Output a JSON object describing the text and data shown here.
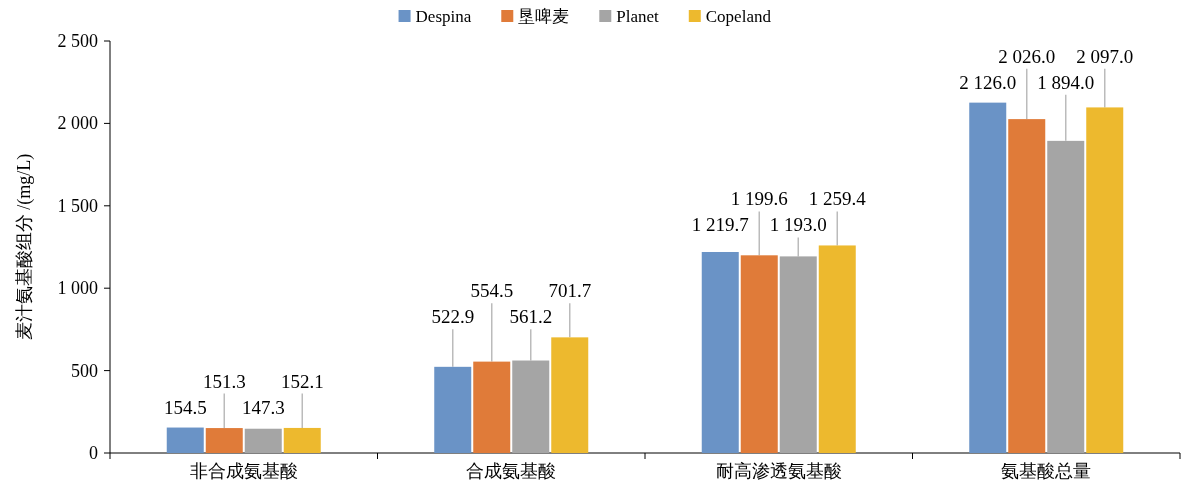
{
  "chart_data": {
    "type": "bar",
    "ylabel": "麦汁氨基酸组分 /(mg/L)",
    "categories": [
      "非合成氨基酸",
      "合成氨基酸",
      "耐高渗透氨基酸",
      "氨基酸总量"
    ],
    "series": [
      {
        "name": "Despina",
        "color": "#6a93c6",
        "values": [
          154.5,
          522.9,
          1219.7,
          2126.0
        ],
        "value_labels": [
          "154.5",
          "522.9",
          "1 219.7",
          "2 126.0"
        ]
      },
      {
        "name": "垦啤麦",
        "color": "#e07b39",
        "values": [
          151.3,
          554.5,
          1199.6,
          2026.0
        ],
        "value_labels": [
          "151.3",
          "554.5",
          "1 199.6",
          "2 026.0"
        ]
      },
      {
        "name": "Planet",
        "color": "#a5a5a5",
        "values": [
          147.3,
          561.2,
          1193.0,
          1894.0
        ],
        "value_labels": [
          "147.3",
          "561.2",
          "1 193.0",
          "1 894.0"
        ]
      },
      {
        "name": "Copeland",
        "color": "#edb92e",
        "values": [
          152.1,
          701.7,
          1259.4,
          2097.0
        ],
        "value_labels": [
          "152.1",
          "701.7",
          "1 259.4",
          "2 097.0"
        ]
      }
    ],
    "ylim": [
      0,
      2500
    ],
    "yticks": [
      0,
      500,
      {
        "value": 1000,
        "label": "1 000"
      },
      {
        "value": 1500,
        "label": "1 500"
      },
      {
        "value": 2000,
        "label": "2 000"
      },
      {
        "value": 2500,
        "label": "2 500"
      }
    ],
    "legend": "top",
    "grid": false
  }
}
